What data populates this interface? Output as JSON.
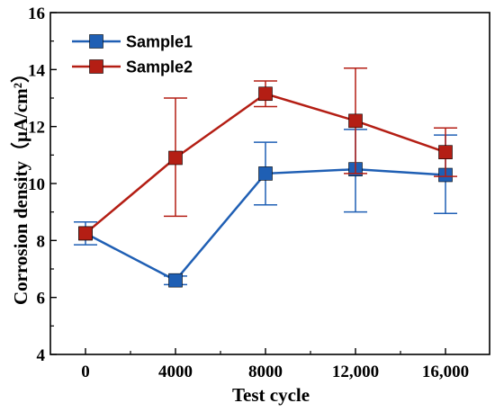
{
  "chart_data": {
    "type": "line",
    "xlabel": "Test cycle",
    "ylabel": "Corrosion density（μA/cm²）",
    "categories": [
      "0",
      "4000",
      "8000",
      "12,000",
      "16,000"
    ],
    "ylim": [
      4,
      16
    ],
    "yticks": [
      4,
      6,
      8,
      10,
      12,
      14,
      16
    ],
    "grid": false,
    "legend_position": "top-left",
    "series": [
      {
        "name": "Sample1",
        "color": "#1f5fb4",
        "values": [
          8.25,
          6.6,
          10.35,
          10.5,
          10.3
        ],
        "err_upper": [
          8.65,
          6.75,
          11.45,
          11.9,
          11.7
        ],
        "err_lower": [
          7.85,
          6.45,
          9.25,
          9.0,
          8.95
        ]
      },
      {
        "name": "Sample2",
        "color": "#b41e14",
        "values": [
          8.25,
          10.9,
          13.15,
          12.2,
          11.1
        ],
        "err_upper": [
          8.25,
          13.0,
          13.6,
          14.05,
          11.95
        ],
        "err_lower": [
          8.25,
          8.85,
          12.7,
          10.35,
          10.25
        ]
      }
    ]
  }
}
